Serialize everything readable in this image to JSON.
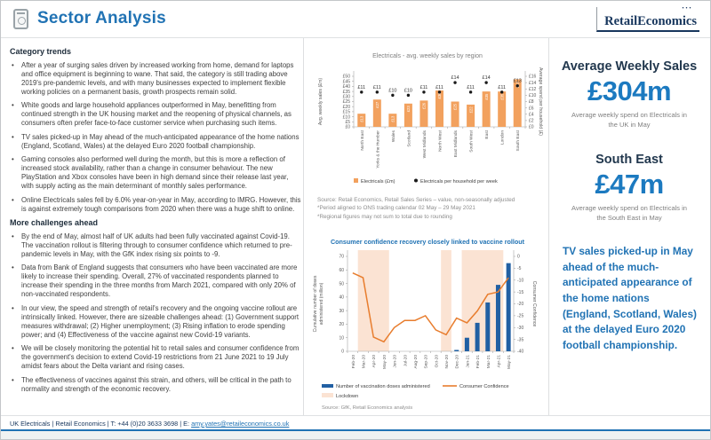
{
  "header": {
    "title": "Sector Analysis",
    "logo_part1": "Retail",
    "logo_part2": "Economics"
  },
  "left_column": {
    "section1_heading": "Category trends",
    "section1_bullets": [
      "After a year of surging sales driven by increased working from home, demand for laptops and office equipment is beginning to wane. That said, the category is still trading above 2019's pre-pandemic levels, and with many businesses expected to implement flexible working policies on a permanent basis, growth prospects remain solid.",
      "White goods and large household appliances outperformed in May, benefitting from continued strength in the UK housing market and the reopening of physical channels, as consumers often prefer face-to-face customer service when purchasing such items.",
      "TV sales picked-up in May ahead of the much-anticipated appearance of the home nations (England, Scotland, Wales) at the delayed Euro 2020 football championship.",
      "Gaming consoles also performed well during the month, but this is more a reflection of increased stock availability, rather than a change in consumer behaviour. The new PlayStation and Xbox consoles have been in high demand since their release last year, with supply acting as the main determinant of monthly sales performance.",
      "Online Electricals sales fell by 6.0% year-on-year in May, according to IMRG. However, this is against extremely tough comparisons from 2020 when there was a huge shift to online."
    ],
    "section2_heading": "More challenges ahead",
    "section2_bullets": [
      "By the end of May, almost half of UK adults had been fully vaccinated against Covid-19. The vaccination rollout is filtering through to consumer confidence which returned to pre-pandemic levels in May, with the GfK index rising six points to -9.",
      "Data from Bank of England suggests that consumers who have been vaccinated are more likely to increase their spending. Overall, 27% of vaccinated respondents planned to increase their spending in the three months from March 2021, compared with only 20% of non-vaccinated respondents.",
      "In our view, the speed and strength of retail's recovery and the ongoing vaccine rollout are intrinsically linked. However, there are sizeable challenges ahead: (1) Government support measures withdrawal; (2) Higher unemployment; (3) Rising inflation to erode spending power; and (4) Effectiveness of the vaccine against new Covid-19 variants.",
      "We will be closely monitoring the potential hit to retail sales and consumer confidence from the government's decision to extend Covid-19 restrictions from 21 June 2021 to 19 July amidst fears about the Delta variant and rising cases.",
      "The effectiveness of vaccines against this strain, and others, will be critical in the path to normality and strength of the economic recovery."
    ]
  },
  "middle_column": {
    "chart1_source_lines": [
      "Source: Retail Economics, Retail Sales Series – value, non-seasonally adjusted",
      "*Period aligned to ONS trading calendar 02 May – 29 May 2021",
      "*Regional figures may not sum to total due to rounding"
    ]
  },
  "right_column": {
    "stat1_title": "Average Weekly Sales",
    "stat1_value": "£304m",
    "stat1_caption": "Average weekly spend on Electricals in the UK in May",
    "stat2_title": "South East",
    "stat2_value": "£47m",
    "stat2_caption": "Average weekly spend on Electricals in the South East in May",
    "callout": "TV sales picked-up in May ahead of the much-anticipated appearance of the home nations (England, Scotland, Wales) at the delayed Euro 2020 football championship."
  },
  "footer": {
    "text": "UK Electricals | Retail Economics | T: +44 (0)20 3633 3698 | E: ",
    "email": "amy.yates@retaileconomics.co.uk"
  },
  "colors": {
    "accent_blue": "#2173b4",
    "stat_blue": "#1c7ac0",
    "navy": "#17365d",
    "bar_orange": "#f2a15e",
    "line_orange": "#e87d2e",
    "bar_dark_blue": "#2160a3",
    "lockdown_peach": "#fbe3d3",
    "body_gray": "#404040"
  },
  "chart_data": [
    {
      "type": "bar",
      "title": "Electricals - avg. weekly sales by region",
      "categories": [
        "North East",
        "Yorks & the Humber",
        "Wales",
        "Scotland",
        "West Midlands",
        "North West",
        "East Midlands",
        "South West",
        "East",
        "London",
        "South East"
      ],
      "series": [
        {
          "name": "Electricals (£m)",
          "type": "bar",
          "axis": "left",
          "values": [
            13,
            27,
            13,
            23,
            26,
            36,
            25,
            22,
            35,
            35,
            47
          ]
        },
        {
          "name": "Electricals per household per week",
          "type": "point",
          "axis": "right",
          "values": [
            11,
            11,
            10,
            10,
            11,
            11,
            14,
            11,
            14,
            11,
            13
          ]
        }
      ],
      "ylabel_left": "Avg. weekly sales (£m)",
      "ylim_left": [
        0,
        50
      ],
      "ytick_step_left": 5,
      "ylabel_right": "Average spend per household (£)",
      "ylim_right": [
        0,
        16
      ],
      "ytick_step_right": 2,
      "tick_prefix": "£",
      "legend_position": "bottom",
      "grid": false,
      "colors": {
        "bar": "#f2a15e",
        "point": "#1a1a1a"
      }
    },
    {
      "type": "combo",
      "title": "Consumer confidence recovery closely linked to vaccine rollout",
      "x": [
        "Feb-20",
        "Mar-20",
        "Apr-20",
        "May-20",
        "Jun-20",
        "Jul-20",
        "Aug-20",
        "Sep-20",
        "Oct-20",
        "Nov-20",
        "Dec-20",
        "Jan-21",
        "Feb-21",
        "Mar-21",
        "Apr-21",
        "May-21"
      ],
      "series": [
        {
          "name": "Number of vaccination doses administered",
          "type": "bar",
          "axis": "left",
          "values": [
            null,
            null,
            null,
            null,
            null,
            null,
            null,
            null,
            null,
            null,
            1,
            10,
            21,
            36,
            49,
            65
          ]
        },
        {
          "name": "Consumer Confidence",
          "type": "line",
          "axis": "right",
          "values": [
            -7,
            -9,
            -34,
            -36,
            -30,
            -27,
            -27,
            -25,
            -31,
            -33,
            -26,
            -28,
            -23,
            -16,
            -15,
            -9
          ]
        },
        {
          "name": "Lockdown",
          "type": "band",
          "ranges": [
            [
              "Mar-20",
              "May-20"
            ],
            [
              "Nov-20",
              "Nov-20"
            ],
            [
              "Jan-21",
              "Apr-21"
            ]
          ]
        }
      ],
      "ylabel_left_line1": "Cumulative number of doses",
      "ylabel_left_line2": "administered (million)",
      "ylim_left": [
        0,
        70
      ],
      "ytick_step_left": 10,
      "ylabel_right": "Consumer Confidence",
      "ylim_right": [
        -40,
        0
      ],
      "ytick_step_right": 5,
      "legend_position": "bottom",
      "grid": false,
      "source": "Source: GfK, Retail Economics analysis",
      "colors": {
        "bar": "#2160a3",
        "line": "#e87d2e",
        "band": "#fbe3d3"
      }
    }
  ]
}
